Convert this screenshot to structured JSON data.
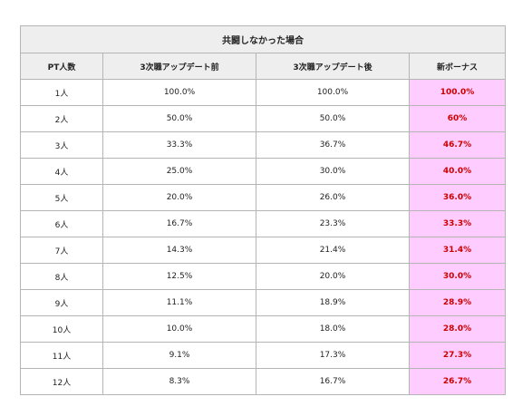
{
  "table": {
    "title": "共闘しなかった場合",
    "headers": [
      "PT人数",
      "3次職アップデート前",
      "3次職アップデート後",
      "新ボーナス"
    ],
    "rows": [
      [
        "1人",
        "100.0%",
        "100.0%",
        "100.0%"
      ],
      [
        "2人",
        "50.0%",
        "50.0%",
        "60%"
      ],
      [
        "3人",
        "33.3%",
        "36.7%",
        "46.7%"
      ],
      [
        "4人",
        "25.0%",
        "30.0%",
        "40.0%"
      ],
      [
        "5人",
        "20.0%",
        "26.0%",
        "36.0%"
      ],
      [
        "6人",
        "16.7%",
        "23.3%",
        "33.3%"
      ],
      [
        "7人",
        "14.3%",
        "21.4%",
        "31.4%"
      ],
      [
        "8人",
        "12.5%",
        "20.0%",
        "30.0%"
      ],
      [
        "9人",
        "11.1%",
        "18.9%",
        "28.9%"
      ],
      [
        "10人",
        "10.0%",
        "18.0%",
        "28.0%"
      ],
      [
        "11人",
        "9.1%",
        "17.3%",
        "27.3%"
      ],
      [
        "12人",
        "8.3%",
        "16.7%",
        "26.7%"
      ]
    ],
    "colors": {
      "header_bg": "#eeeeee",
      "bonus_bg": "#ffccff",
      "bonus_text": "#cc0000",
      "border": "#b5b5b5"
    }
  }
}
